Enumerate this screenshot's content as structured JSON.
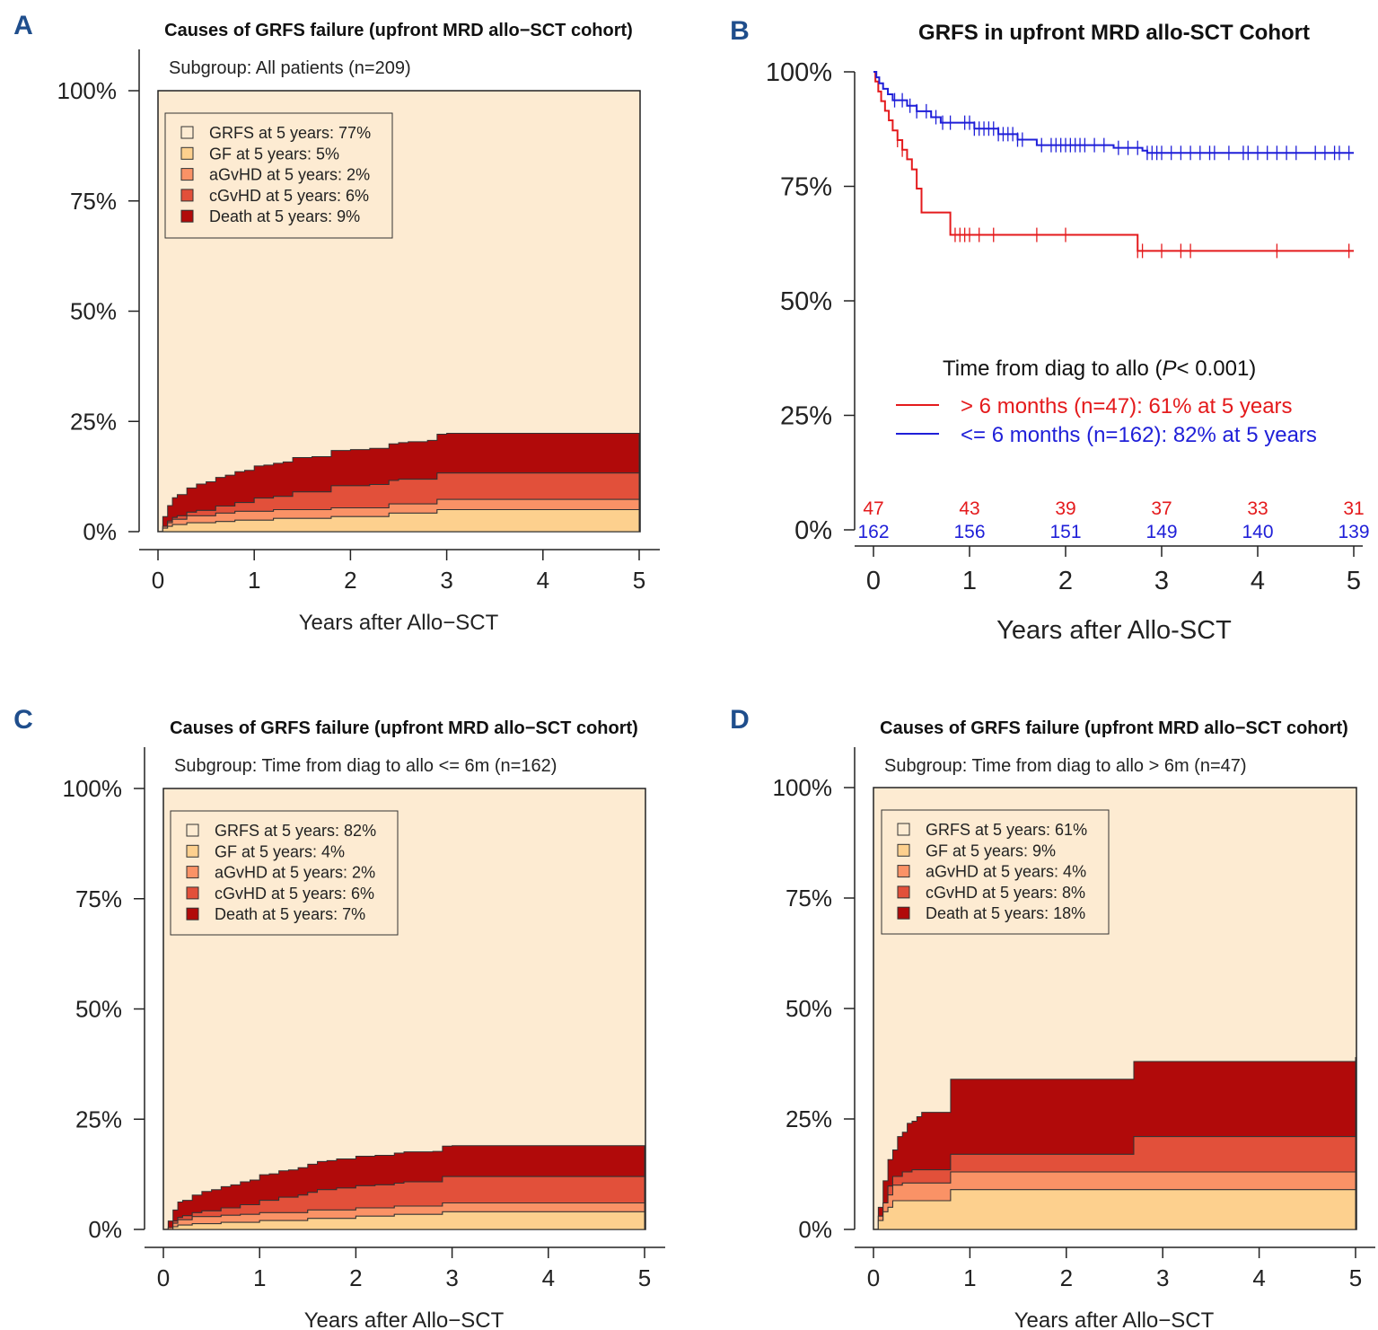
{
  "figure": {
    "panels": [
      {
        "letter": "A",
        "kind": "stacked",
        "title": "Causes of GRFS failure (upfront MRD allo−SCT cohort)",
        "subtitle": "Subgroup: All patients (n=209)",
        "xlabel": "Years after Allo−SCT",
        "xticks": [
          "0",
          "1",
          "2",
          "3",
          "4",
          "5"
        ],
        "yticks": [
          "0%",
          "25%",
          "50%",
          "75%",
          "100%"
        ],
        "legend": [
          "GRFS at 5 years: 77%",
          "GF at 5 years: 5%",
          "aGvHD at 5 years: 2%",
          "cGvHD at 5 years: 6%",
          "Death at 5 years: 9%"
        ]
      },
      {
        "letter": "B",
        "kind": "km",
        "title": "GRFS in upfront MRD allo-SCT Cohort",
        "xlabel": "Years after Allo-SCT",
        "xticks": [
          "0",
          "1",
          "2",
          "3",
          "4",
          "5"
        ],
        "yticks": [
          "0%",
          "25%",
          "50%",
          "75%",
          "100%"
        ],
        "legend_title_pre": "Time from diag to allo (",
        "legend_title_p": "P",
        "legend_title_post": "< 0.001)",
        "legend": [
          "> 6 months (n=47): 61% at 5 years",
          "<= 6 months (n=162): 82% at 5 years"
        ],
        "at_risk": [
          [
            "47",
            "43",
            "39",
            "37",
            "33",
            "31"
          ],
          [
            "162",
            "156",
            "151",
            "149",
            "140",
            "139"
          ]
        ]
      },
      {
        "letter": "C",
        "kind": "stacked",
        "title": "Causes of GRFS failure (upfront MRD allo−SCT cohort)",
        "subtitle": "Subgroup: Time from diag to allo <= 6m (n=162)",
        "xlabel": "Years after Allo−SCT",
        "xticks": [
          "0",
          "1",
          "2",
          "3",
          "4",
          "5"
        ],
        "yticks": [
          "0%",
          "25%",
          "50%",
          "75%",
          "100%"
        ],
        "legend": [
          "GRFS at 5 years: 82%",
          "GF at 5 years: 4%",
          "aGvHD  at 5 years: 2%",
          "cGvHD  at 5 years: 6%",
          "Death at 5 years: 7%"
        ]
      },
      {
        "letter": "D",
        "kind": "stacked",
        "title": "Causes of GRFS failure (upfront MRD allo−SCT cohort)",
        "subtitle": "Subgroup: Time from diag to allo > 6m (n=47)",
        "xlabel": "Years after Allo−SCT",
        "xticks": [
          "0",
          "1",
          "2",
          "3",
          "4",
          "5"
        ],
        "yticks": [
          "0%",
          "25%",
          "50%",
          "75%",
          "100%"
        ],
        "legend": [
          "GRFS at 5 years: 61%",
          "GF at 5 years: 9%",
          "aGvHD  at 5 years: 4%",
          "cGvHD  at 5 years: 8%",
          "Death at 5 years: 18%"
        ]
      }
    ]
  },
  "chart_data": [
    {
      "type": "area",
      "panel": "A",
      "title": "Causes of GRFS failure (upfront MRD allo−SCT cohort)",
      "xlabel": "Years after Allo−SCT",
      "xlim": [
        0,
        5
      ],
      "ylim": [
        0,
        100
      ],
      "stacked": true,
      "series": [
        {
          "name": "GF",
          "color": "#FDD08E",
          "x": [
            0,
            0.05,
            0.1,
            0.15,
            0.3,
            0.6,
            0.8,
            1.2,
            1.8,
            2.4,
            2.9,
            5
          ],
          "y": [
            0,
            0.8,
            1.2,
            1.6,
            2.0,
            2.3,
            2.6,
            3.0,
            3.4,
            4.2,
            5.0,
            5.0
          ]
        },
        {
          "name": "aGvHD",
          "color": "#FA9266",
          "x": [
            0,
            0.05,
            0.1,
            0.15,
            0.3,
            0.6,
            0.8,
            1.2,
            1.8,
            2.4,
            2.9,
            5
          ],
          "y": [
            0,
            0.4,
            0.8,
            1.2,
            1.6,
            1.9,
            2.0,
            2.0,
            2.0,
            2.1,
            2.3,
            2.3
          ]
        },
        {
          "name": "cGvHD",
          "color": "#E2503A",
          "x": [
            0,
            0.1,
            0.2,
            0.4,
            0.6,
            0.8,
            1.0,
            1.4,
            1.8,
            2.2,
            2.5,
            2.9,
            5
          ],
          "y": [
            0,
            0.4,
            0.8,
            1.2,
            1.6,
            2.0,
            3.0,
            4.0,
            5.0,
            5.3,
            5.6,
            6.0,
            6.0
          ]
        },
        {
          "name": "Death",
          "color": "#B10A0A",
          "x": [
            0,
            0.05,
            0.1,
            0.15,
            0.2,
            0.3,
            0.4,
            0.5,
            0.7,
            0.9,
            1.1,
            1.3,
            1.6,
            2.0,
            2.4,
            2.6,
            2.8,
            3.0,
            5
          ],
          "y": [
            0,
            2.2,
            3.5,
            4.5,
            4.8,
            5.5,
            6.0,
            6.5,
            7.0,
            7.3,
            7.5,
            7.8,
            8.0,
            8.2,
            8.3,
            8.5,
            8.8,
            9.0,
            9.0
          ]
        }
      ]
    },
    {
      "type": "line",
      "panel": "B",
      "title": "GRFS in upfront MRD allo-SCT Cohort",
      "xlabel": "Years after Allo-SCT",
      "xlim": [
        0,
        5
      ],
      "ylim": [
        0,
        100
      ],
      "series": [
        {
          "name": "> 6 months (n=47): 61% at 5 years",
          "color": "#E41A1C",
          "x": [
            0,
            0.02,
            0.05,
            0.08,
            0.12,
            0.16,
            0.2,
            0.25,
            0.3,
            0.35,
            0.4,
            0.45,
            0.5,
            0.8,
            2.7,
            2.75,
            5
          ],
          "y": [
            100,
            97.9,
            95.7,
            93.6,
            91.5,
            89.4,
            87.2,
            85.1,
            83.0,
            80.9,
            78.7,
            74.5,
            69.3,
            64.4,
            64.4,
            60.9,
            60.9
          ],
          "censor_x": [
            0.25,
            0.3,
            0.85,
            0.9,
            0.95,
            1.0,
            1.1,
            1.25,
            1.7,
            2.0,
            2.75,
            2.8,
            3.0,
            3.2,
            3.3,
            4.2,
            4.95
          ]
        },
        {
          "name": "<= 6 months (n=162): 82% at 5 years",
          "color": "#1F1FD8",
          "x": [
            0,
            0.03,
            0.06,
            0.1,
            0.15,
            0.2,
            0.35,
            0.45,
            0.6,
            0.7,
            1.05,
            1.3,
            1.5,
            1.7,
            2.1,
            2.5,
            2.8,
            2.85,
            5
          ],
          "y": [
            100,
            98.8,
            97.5,
            96.3,
            95.1,
            93.8,
            92.6,
            91.4,
            90.1,
            88.9,
            87.6,
            86.4,
            85.2,
            84.0,
            84.0,
            83.4,
            82.8,
            82.3,
            82.3
          ],
          "censor_x": [
            0.22,
            0.3,
            0.38,
            0.45,
            0.55,
            0.65,
            0.72,
            0.8,
            0.95,
            1.0,
            1.05,
            1.1,
            1.15,
            1.2,
            1.25,
            1.3,
            1.35,
            1.4,
            1.45,
            1.5,
            1.55,
            1.75,
            1.85,
            1.9,
            1.95,
            2.0,
            2.05,
            2.1,
            2.15,
            2.2,
            2.3,
            2.4,
            2.55,
            2.65,
            2.75,
            2.85,
            2.9,
            2.95,
            3.0,
            3.1,
            3.2,
            3.3,
            3.4,
            3.5,
            3.55,
            3.7,
            3.85,
            3.9,
            4.0,
            4.1,
            4.2,
            4.3,
            4.4,
            4.6,
            4.7,
            4.8,
            4.85,
            4.95
          ]
        }
      ],
      "at_risk_times": [
        0,
        1,
        2,
        3,
        4,
        5
      ]
    },
    {
      "type": "area",
      "panel": "C",
      "title": "Causes of GRFS failure (upfront MRD allo−SCT cohort)",
      "xlabel": "Years after Allo−SCT",
      "xlim": [
        0,
        5
      ],
      "ylim": [
        0,
        100
      ],
      "stacked": true,
      "series": [
        {
          "name": "GF",
          "color": "#FDD08E",
          "x": [
            0,
            0.1,
            0.15,
            0.3,
            0.6,
            1.0,
            1.5,
            2.0,
            2.4,
            2.9,
            5
          ],
          "y": [
            0,
            0.6,
            1.0,
            1.3,
            1.6,
            2.0,
            2.5,
            3.0,
            3.4,
            4.0,
            4.0
          ]
        },
        {
          "name": "aGvHD",
          "color": "#FA9266",
          "x": [
            0,
            0.05,
            0.1,
            0.15,
            0.3,
            0.8,
            1.5,
            2.9,
            5
          ],
          "y": [
            0,
            0.4,
            0.8,
            1.2,
            1.6,
            1.8,
            1.9,
            2.0,
            2.0
          ]
        },
        {
          "name": "cGvHD",
          "color": "#E2503A",
          "x": [
            0,
            0.1,
            0.2,
            0.4,
            0.6,
            0.8,
            1.0,
            1.2,
            1.4,
            1.6,
            1.8,
            2.2,
            2.5,
            2.9,
            5
          ],
          "y": [
            0,
            0.5,
            0.9,
            1.3,
            1.7,
            2.2,
            2.8,
            3.5,
            4.0,
            4.6,
            5.0,
            5.2,
            5.5,
            6.0,
            6.0
          ]
        },
        {
          "name": "Death",
          "color": "#B10A0A",
          "x": [
            0,
            0.05,
            0.1,
            0.15,
            0.3,
            0.4,
            0.5,
            0.7,
            0.9,
            1.0,
            1.1,
            1.3,
            1.5,
            1.7,
            2.0,
            2.4,
            2.8,
            3.0,
            5
          ],
          "y": [
            0,
            1.5,
            2.5,
            3.5,
            4.0,
            4.4,
            4.8,
            5.2,
            5.6,
            5.8,
            6.0,
            6.2,
            6.4,
            6.6,
            6.7,
            6.8,
            6.9,
            7.0,
            7.0
          ]
        }
      ]
    },
    {
      "type": "area",
      "panel": "D",
      "title": "Causes of GRFS failure (upfront MRD allo−SCT cohort)",
      "xlabel": "Years after Allo−SCT",
      "xlim": [
        0,
        5
      ],
      "ylim": [
        0,
        100
      ],
      "stacked": true,
      "series": [
        {
          "name": "GF",
          "color": "#FDD08E",
          "x": [
            0,
            0.05,
            0.1,
            0.15,
            0.2,
            0.8,
            5
          ],
          "y": [
            0,
            2,
            4,
            5,
            6.5,
            9,
            9
          ]
        },
        {
          "name": "aGvHD",
          "color": "#FA9266",
          "x": [
            0,
            0.05,
            0.1,
            0.15,
            0.2,
            0.3,
            0.8,
            5
          ],
          "y": [
            0,
            1,
            2,
            2.8,
            3.5,
            4.0,
            4.0,
            4.0
          ]
        },
        {
          "name": "cGvHD",
          "color": "#E2503A",
          "x": [
            0,
            0.15,
            0.3,
            0.4,
            0.8,
            2.6,
            2.7,
            5
          ],
          "y": [
            0,
            2,
            2.5,
            3.0,
            4.0,
            4.0,
            8.0,
            8.0
          ]
        },
        {
          "name": "Death",
          "color": "#B10A0A",
          "x": [
            0,
            0.05,
            0.1,
            0.15,
            0.25,
            0.35,
            0.45,
            0.5,
            0.8,
            2.7,
            5
          ],
          "y": [
            0,
            2,
            5,
            6,
            9,
            11,
            12,
            13,
            17,
            17,
            18
          ]
        }
      ]
    }
  ]
}
